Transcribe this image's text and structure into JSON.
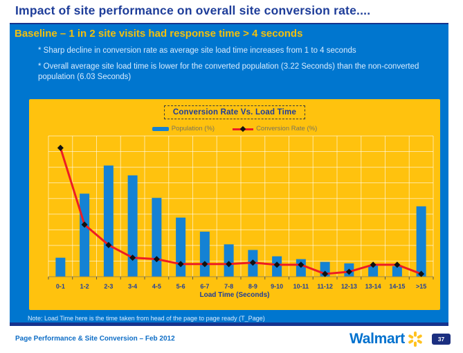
{
  "slide": {
    "title": "Impact of site performance on overall site conversion rate....",
    "banner": {
      "headline": "Baseline – 1 in 2 site visits had response time > 4 seconds",
      "bullets": [
        "* Sharp decline in conversion rate as average site load time increases from 1 to 4 seconds",
        "* Overall average site load time is lower for the converted population (3.22 Seconds) than the non-converted population (6.03 Seconds)"
      ],
      "note": "Note: Load Time here is the time taken from head of the page to page ready (T_Page)"
    },
    "footer": {
      "left_text": "Page Performance & Site Conversion – Feb 2012",
      "logo_text": "Walmart",
      "page_number": "37"
    }
  },
  "chart_data": {
    "type": "bar",
    "combo": "bar+line",
    "title": "Conversion Rate Vs. Load Time",
    "xlabel": "Load Time (Seconds)",
    "ylabel": "",
    "categories": [
      "0-1",
      "1-2",
      "2-3",
      "3-4",
      "4-5",
      "5-6",
      "6-7",
      "7-8",
      "8-9",
      "9-10",
      "10-11",
      "11-12",
      "12-13",
      "13-14",
      "14-15",
      ">15"
    ],
    "series": [
      {
        "name": "Population (%)",
        "type": "bar",
        "values": [
          13.5,
          59,
          79,
          72,
          56,
          42,
          32,
          23,
          19,
          14.5,
          12.5,
          10.5,
          9.5,
          8,
          7.5,
          50
        ]
      },
      {
        "name": "Conversion Rate (%)",
        "type": "line",
        "values": [
          91.5,
          37,
          22.5,
          13.5,
          12.5,
          9,
          9,
          9,
          10,
          8.5,
          8.5,
          2,
          3.5,
          8.5,
          8.5,
          2
        ]
      }
    ],
    "ylim": [
      0,
      100
    ],
    "grid": true,
    "grid_rows": 9,
    "legend_position": "top",
    "y_axis_labels_visible": false,
    "values_note": "y-axis has no tick labels in source; values estimated from gridlines as percentages",
    "colors": {
      "panel": "#ffc20e",
      "grid": "rgba(255,255,255,0.6)",
      "bar": "#1482d4",
      "line": "#ed1c24",
      "marker": "#111111",
      "tick_label": "#21409c",
      "baseline": "#9a8a50"
    }
  }
}
